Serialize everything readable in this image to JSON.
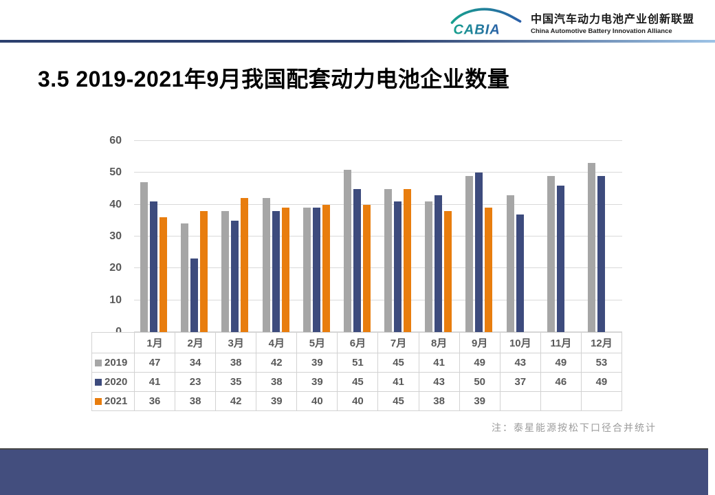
{
  "header": {
    "logo_text": "CABIA",
    "org_name_zh": "中国汽车动力电池产业创新联盟",
    "org_name_en": "China Automotive Battery Innovation Alliance"
  },
  "title": "3.5 2019-2021年9月我国配套动力电池企业数量",
  "note": "注：泰星能源按松下口径合并统计",
  "colors": {
    "accent_navy": "#434e7e",
    "divider_dark": "#2c406e",
    "divider_light": "#9dc3e6",
    "logo_teal": "#17a08e",
    "logo_blue": "#2b5fa8"
  },
  "chart_data": {
    "type": "bar",
    "title": "",
    "xlabel": "",
    "ylabel": "",
    "categories": [
      "1月",
      "2月",
      "3月",
      "4月",
      "5月",
      "6月",
      "7月",
      "8月",
      "9月",
      "10月",
      "11月",
      "12月"
    ],
    "series": [
      {
        "name": "2019",
        "color": "#a6a6a6",
        "values": [
          47,
          34,
          38,
          42,
          39,
          51,
          45,
          41,
          49,
          43,
          49,
          53
        ]
      },
      {
        "name": "2020",
        "color": "#3d4b7d",
        "values": [
          41,
          23,
          35,
          38,
          39,
          45,
          41,
          43,
          50,
          37,
          46,
          49
        ]
      },
      {
        "name": "2021",
        "color": "#e87d0e",
        "values": [
          36,
          38,
          42,
          39,
          40,
          40,
          45,
          38,
          39,
          null,
          null,
          null
        ]
      }
    ],
    "ylim": [
      0,
      60
    ],
    "yticks": [
      0,
      10,
      20,
      30,
      40,
      50,
      60
    ],
    "grid": true,
    "gridline_color": "#d9d9d9",
    "legend_position": "table-left"
  }
}
